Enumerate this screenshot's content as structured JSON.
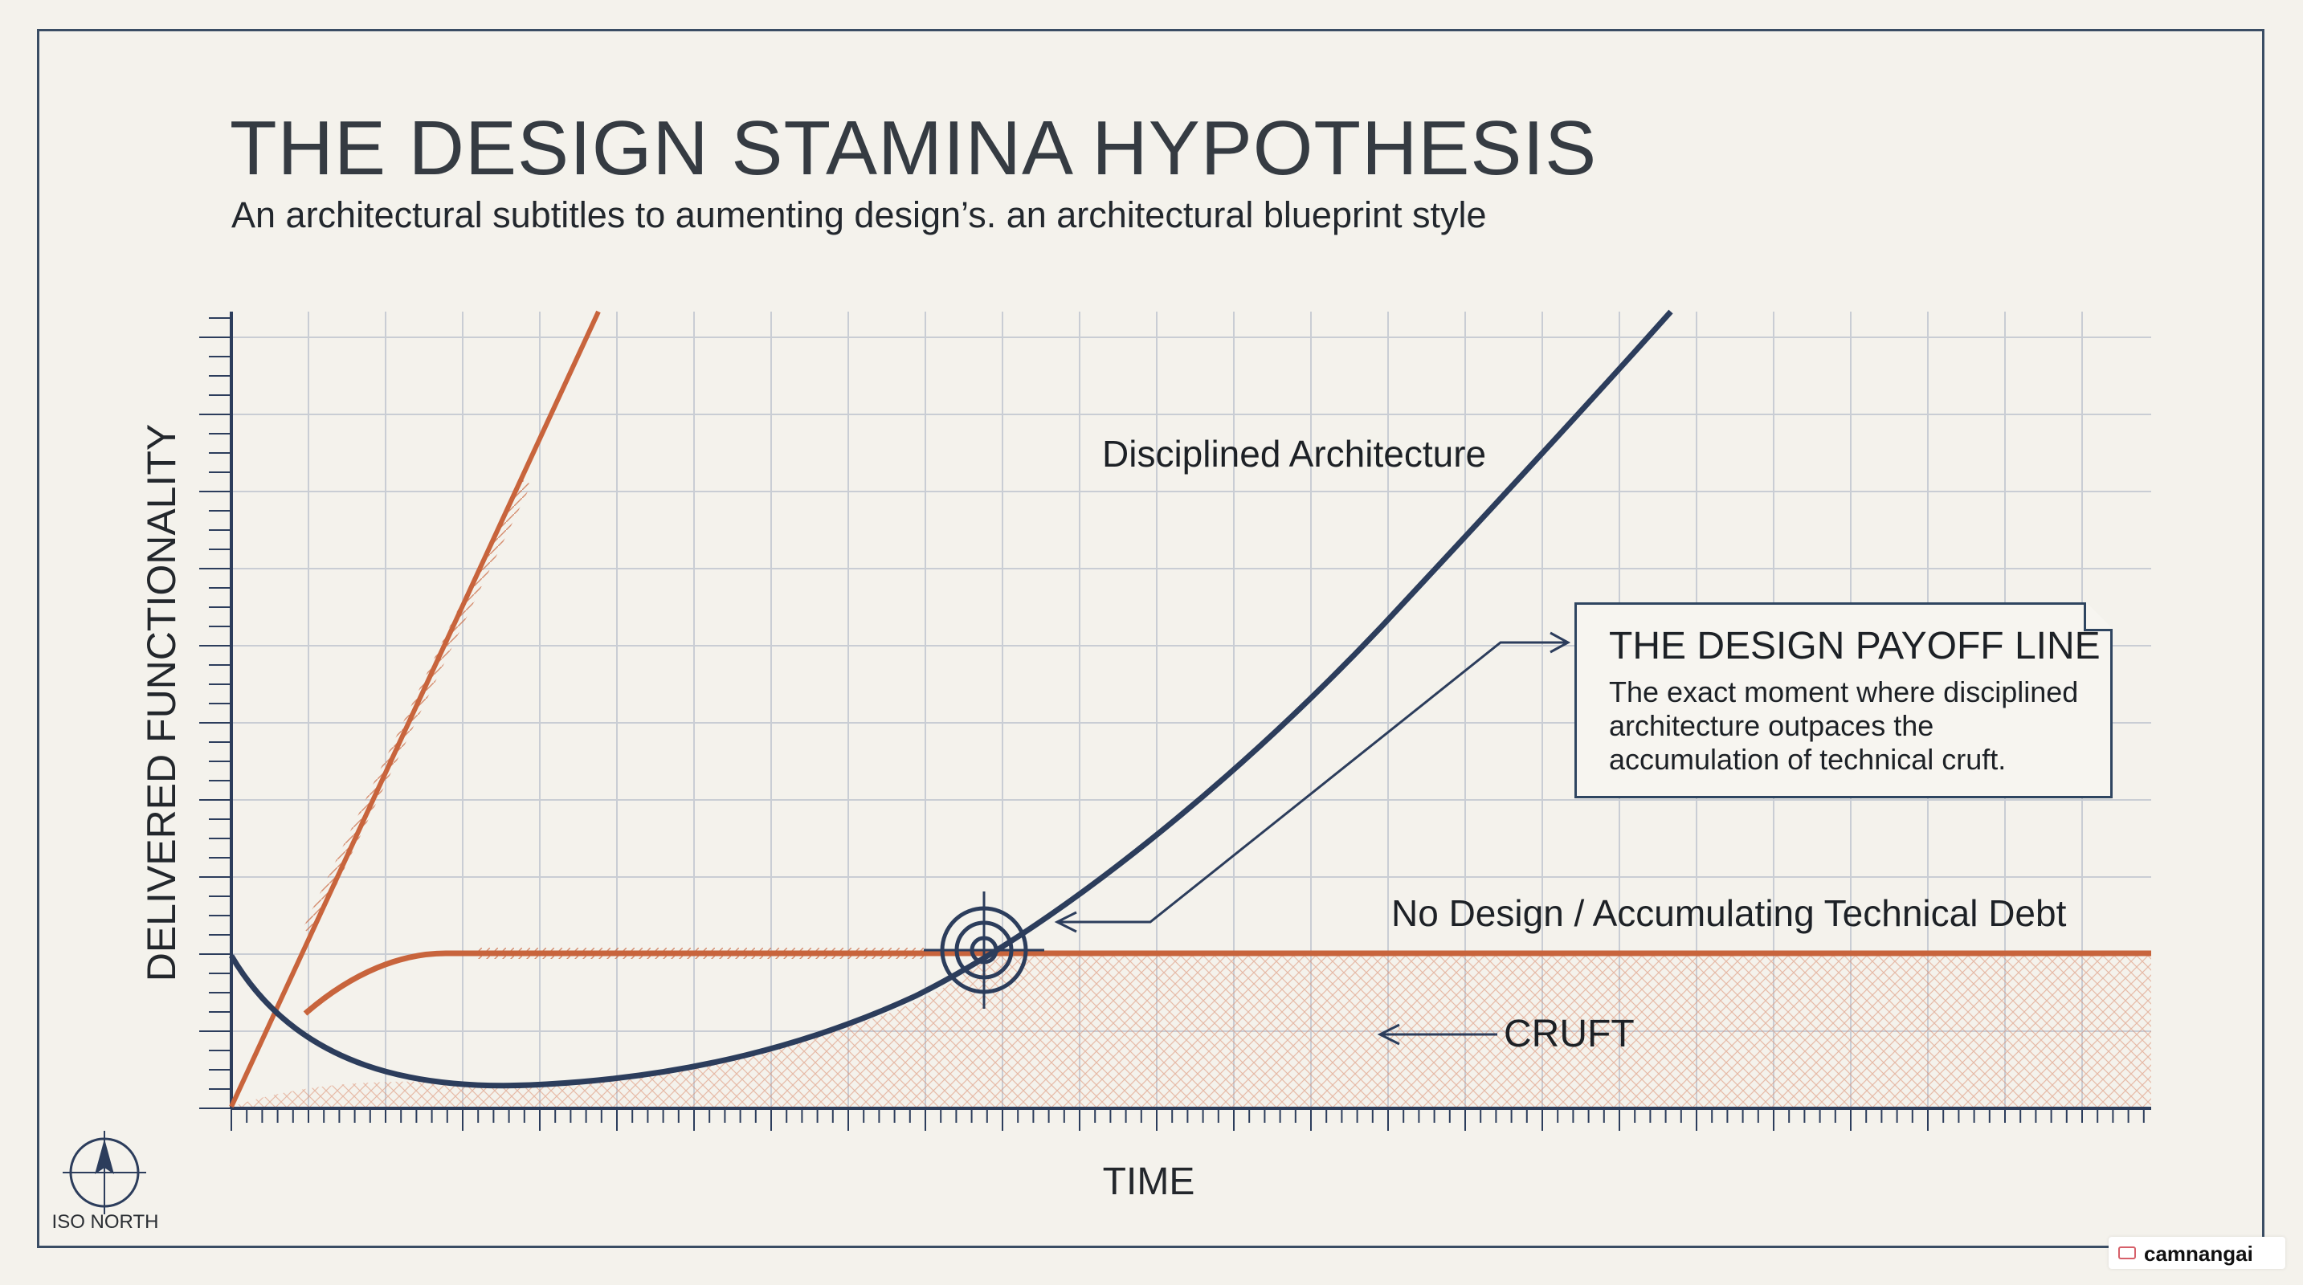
{
  "title": "THE DESIGN STAMINA HYPOTHESIS",
  "subtitle": "An architectural subtitles to aumenting design’s. an architectural blueprint style",
  "axes": {
    "y_label": "DELIVERED FUNCTIONALITY",
    "x_label": "TIME"
  },
  "curves": {
    "disciplined_label": "Disciplined Architecture",
    "no_design_label": "No Design / Accumulating Technical Debt",
    "cruft_label": "CRUFT"
  },
  "callout": {
    "title": "THE DESIGN PAYOFF LINE",
    "body": "The exact moment where disciplined architecture outpaces the accumulation of technical cruft."
  },
  "compass_label": "ISO NORTH",
  "watermark": "camnangai",
  "colors": {
    "navy": "#2c3d5c",
    "orange": "#c8643c",
    "grid": "#c9cdd4",
    "background": "#f4f2ec"
  }
}
